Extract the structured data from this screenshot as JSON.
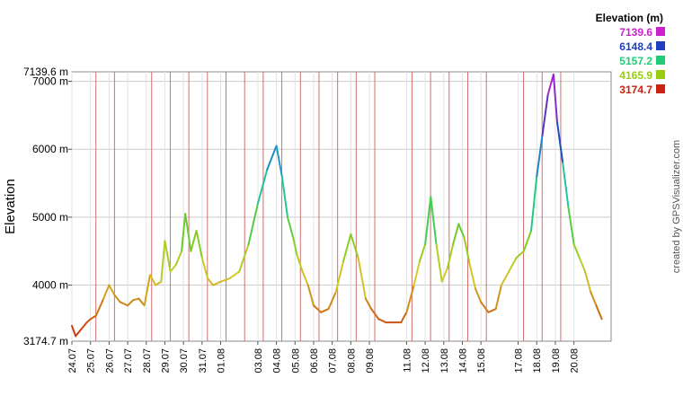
{
  "chart_data": {
    "type": "line",
    "title": "",
    "ylabel": "Elevation",
    "credit": "created by GPSVisualizer.com",
    "ylim": [
      3174.7,
      7139.6
    ],
    "ylim_labels": [
      "3174.7 m",
      "7139.6 m"
    ],
    "y_ticks": [
      {
        "value": 4000,
        "label": "4000 m"
      },
      {
        "value": 5000,
        "label": "5000 m"
      },
      {
        "value": 6000,
        "label": "6000 m"
      },
      {
        "value": 7000,
        "label": "7000 m"
      }
    ],
    "x_range_days": [
      "2012-07-24",
      "2012-08-22"
    ],
    "x_ticks": [
      {
        "date": "2012-07-24",
        "label": "24.07"
      },
      {
        "date": "2012-07-25",
        "label": "25.07"
      },
      {
        "date": "2012-07-26",
        "label": "26.07"
      },
      {
        "date": "2012-07-27",
        "label": "27.07"
      },
      {
        "date": "2012-07-28",
        "label": "28.07"
      },
      {
        "date": "2012-07-29",
        "label": "29.07"
      },
      {
        "date": "2012-07-30",
        "label": "30.07"
      },
      {
        "date": "2012-07-31",
        "label": "31.07"
      },
      {
        "date": "2012-08-01",
        "label": "01.08"
      },
      {
        "date": "2012-08-03",
        "label": "03.08"
      },
      {
        "date": "2012-08-04",
        "label": "04.08"
      },
      {
        "date": "2012-08-05",
        "label": "05.08"
      },
      {
        "date": "2012-08-06",
        "label": "06.08"
      },
      {
        "date": "2012-08-07",
        "label": "07.08"
      },
      {
        "date": "2012-08-08",
        "label": "08.08"
      },
      {
        "date": "2012-08-09",
        "label": "09.08"
      },
      {
        "date": "2012-08-11",
        "label": "11.08"
      },
      {
        "date": "2012-08-12",
        "label": "12.08"
      },
      {
        "date": "2012-08-13",
        "label": "13.08"
      },
      {
        "date": "2012-08-14",
        "label": "14.08"
      },
      {
        "date": "2012-08-15",
        "label": "15.08"
      },
      {
        "date": "2012-08-17",
        "label": "17.08"
      },
      {
        "date": "2012-08-18",
        "label": "18.08"
      },
      {
        "date": "2012-08-19",
        "label": "19.08"
      },
      {
        "date": "2012-08-20",
        "label": "20.08"
      }
    ],
    "segment_markers": [
      "2012-07-25",
      "2012-07-26",
      "2012-07-28",
      "2012-07-29",
      "2012-07-30",
      "2012-07-31",
      "2012-08-01",
      "2012-08-02",
      "2012-08-03",
      "2012-08-04",
      "2012-08-05",
      "2012-08-06",
      "2012-08-07",
      "2012-08-08",
      "2012-08-09",
      "2012-08-11",
      "2012-08-12",
      "2012-08-13",
      "2012-08-14",
      "2012-08-15",
      "2012-08-17",
      "2012-08-18",
      "2012-08-19"
    ],
    "gridlines": true,
    "legend": {
      "title": "Elevation (m)",
      "placement": "top-right",
      "entries": [
        {
          "label": "7139.6",
          "color": "#cc22cc"
        },
        {
          "label": "6148.4",
          "color": "#1f3fbf"
        },
        {
          "label": "5157.2",
          "color": "#22cc77"
        },
        {
          "label": "4165.9",
          "color": "#99cc11"
        },
        {
          "label": "3174.7",
          "color": "#cc2211"
        }
      ]
    },
    "series": [
      {
        "x": [
          "2012-07-24",
          "2012-07-24.2",
          "2012-07-24.5",
          "2012-07-24.8",
          "2012-07-25.0",
          "2012-07-25.3",
          "2012-07-25.7",
          "2012-07-26.0",
          "2012-07-26.3",
          "2012-07-26.6",
          "2012-07-27.0",
          "2012-07-27.3",
          "2012-07-27.6",
          "2012-07-27.9",
          "2012-07-28.2",
          "2012-07-28.5",
          "2012-07-28.8",
          "2012-07-29.0",
          "2012-07-29.3",
          "2012-07-29.6",
          "2012-07-29.9",
          "2012-07-30.1",
          "2012-07-30.4",
          "2012-07-30.7",
          "2012-07-31.0",
          "2012-07-31.3",
          "2012-07-31.6",
          "2012-08-01.0",
          "2012-08-01.5",
          "2012-08-02.0",
          "2012-08-02.5",
          "2012-08-03.0",
          "2012-08-03.5",
          "2012-08-04.0",
          "2012-08-04.3",
          "2012-08-04.6",
          "2012-08-04.9",
          "2012-08-05.1",
          "2012-08-05.4",
          "2012-08-05.7",
          "2012-08-06.0",
          "2012-08-06.4",
          "2012-08-06.8",
          "2012-08-07.2",
          "2012-08-07.6",
          "2012-08-08.0",
          "2012-08-08.4",
          "2012-08-08.8",
          "2012-08-09.1",
          "2012-08-09.5",
          "2012-08-09.9",
          "2012-08-10.3",
          "2012-08-10.7",
          "2012-08-11.0",
          "2012-08-11.4",
          "2012-08-11.7",
          "2012-08-12.0",
          "2012-08-12.3",
          "2012-08-12.6",
          "2012-08-12.9",
          "2012-08-13.2",
          "2012-08-13.5",
          "2012-08-13.8",
          "2012-08-14.1",
          "2012-08-14.4",
          "2012-08-14.7",
          "2012-08-15.0",
          "2012-08-15.4",
          "2012-08-15.8",
          "2012-08-16.1",
          "2012-08-16.5",
          "2012-08-16.9",
          "2012-08-17.3",
          "2012-08-17.7",
          "2012-08-18.0",
          "2012-08-18.3",
          "2012-08-18.6",
          "2012-08-18.9",
          "2012-08-19.1",
          "2012-08-19.4",
          "2012-08-19.7",
          "2012-08-20.0",
          "2012-08-20.3",
          "2012-08-20.6",
          "2012-08-20.9",
          "2012-08-21.2",
          "2012-08-21.5"
        ],
        "y": [
          3400,
          3250,
          3350,
          3450,
          3500,
          3550,
          3800,
          4000,
          3850,
          3750,
          3700,
          3780,
          3800,
          3700,
          4150,
          4000,
          4050,
          4650,
          4200,
          4300,
          4500,
          5050,
          4500,
          4800,
          4400,
          4100,
          4000,
          4050,
          4100,
          4200,
          4600,
          5200,
          5700,
          6050,
          5600,
          5000,
          4700,
          4450,
          4200,
          4000,
          3700,
          3600,
          3650,
          3900,
          4350,
          4750,
          4400,
          3800,
          3650,
          3500,
          3450,
          3450,
          3450,
          3600,
          4000,
          4350,
          4600,
          5300,
          4600,
          4050,
          4250,
          4600,
          4900,
          4700,
          4300,
          3950,
          3750,
          3600,
          3650,
          4000,
          4200,
          4400,
          4500,
          4800,
          5600,
          6200,
          6800,
          7100,
          6400,
          5800,
          5150,
          4600,
          4400,
          4200,
          3900,
          3700,
          3500
        ]
      }
    ]
  }
}
